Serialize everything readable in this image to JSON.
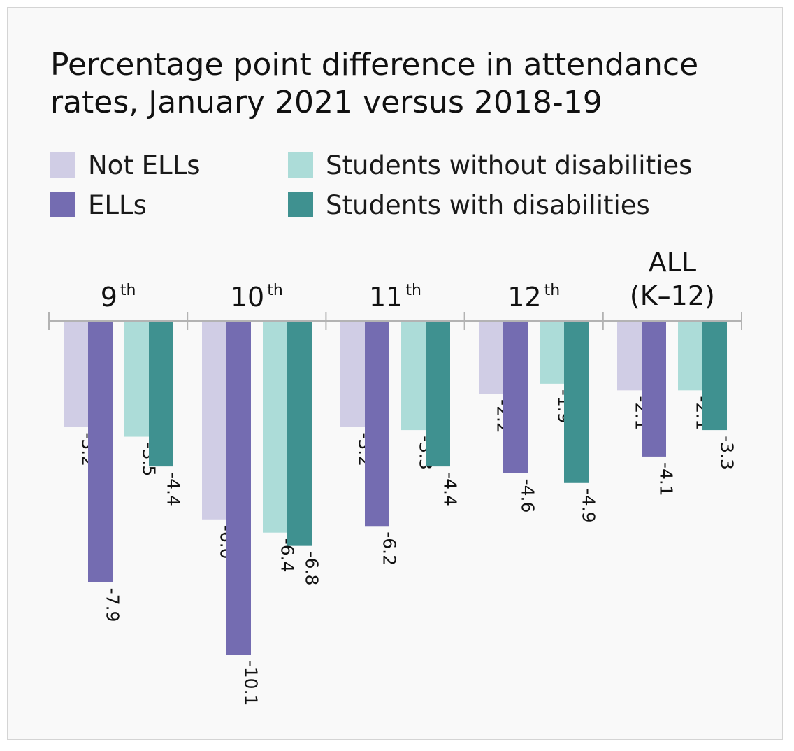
{
  "chart_data": {
    "type": "bar",
    "title": "Percentage point difference in attendance rates, January 2021 versus 2018-19",
    "categories": [
      {
        "main": "9",
        "sup": "th"
      },
      {
        "main": "10",
        "sup": "th"
      },
      {
        "main": "11",
        "sup": "th"
      },
      {
        "main": "12",
        "sup": "th"
      },
      {
        "main": "ALL",
        "line2": "(K–12)"
      }
    ],
    "series": [
      {
        "name": "Not ELLs",
        "color": "#d0cde5",
        "values": [
          -3.2,
          -6.0,
          -3.2,
          -2.2,
          -2.1
        ],
        "labels": [
          "-3.2",
          "-6.0",
          "-3.2",
          "-2.2",
          "-2.1"
        ]
      },
      {
        "name": "ELLs",
        "color": "#746cb1",
        "values": [
          -7.9,
          -10.1,
          -6.2,
          -4.6,
          -4.1
        ],
        "labels": [
          "-7.9",
          "-10.1",
          "-6.2",
          "-4.6",
          "-4.1"
        ]
      },
      {
        "name": "Students without disabilities",
        "color": "#acdcd8",
        "values": [
          -3.5,
          -6.4,
          -3.3,
          -1.9,
          -2.1
        ],
        "labels": [
          "-3.5",
          "-6.4",
          "-3.3",
          "-1.9",
          "-2.1"
        ]
      },
      {
        "name": "Students with disabilities",
        "color": "#3f9190",
        "values": [
          -4.4,
          -6.8,
          -4.4,
          -4.9,
          -3.3
        ],
        "labels": [
          "-4.4",
          "-6.8",
          "-4.4",
          "-4.9",
          "-3.3"
        ]
      }
    ],
    "ylim": [
      -10.1,
      0
    ],
    "grid": false,
    "legend": "top"
  }
}
